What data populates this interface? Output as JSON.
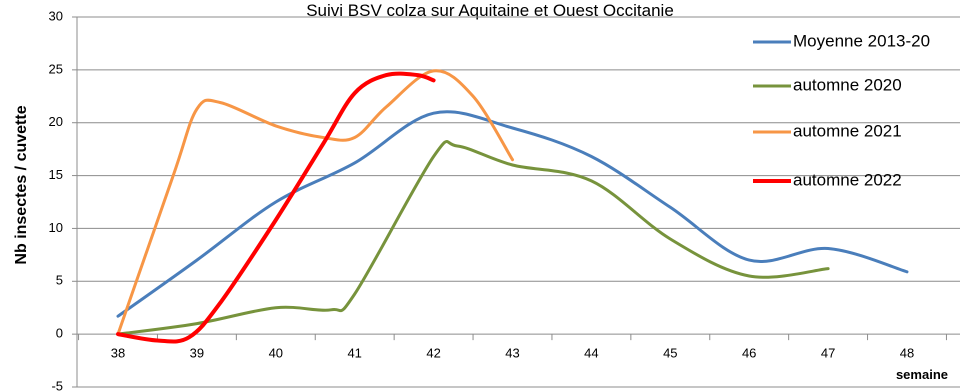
{
  "chart_data": {
    "type": "line",
    "title": "Suivi BSV colza sur Aquitaine et Ouest Occitanie",
    "xlabel": "semaine",
    "ylabel": "Nb insectes / cuvette",
    "xlim": [
      38,
      48
    ],
    "ylim": [
      -5,
      30
    ],
    "x_ticks": [
      38,
      39,
      40,
      41,
      42,
      43,
      44,
      45,
      46,
      47,
      48
    ],
    "y_ticks": [
      -5,
      0,
      5,
      10,
      15,
      20,
      25,
      30
    ],
    "grid": "horizontal",
    "legend_position": "right",
    "series": [
      {
        "name": "Moyenne 2013-20",
        "color": "#4A7EBB",
        "points": [
          [
            38,
            1.7
          ],
          [
            39,
            7.0
          ],
          [
            40,
            12.5
          ],
          [
            41,
            16.2
          ],
          [
            42,
            20.9
          ],
          [
            43,
            19.5
          ],
          [
            44,
            16.8
          ],
          [
            45,
            12.0
          ],
          [
            46,
            7.0
          ],
          [
            47,
            8.1
          ],
          [
            48,
            5.9
          ]
        ]
      },
      {
        "name": "automne 2020",
        "color": "#77933C",
        "points": [
          [
            38,
            0
          ],
          [
            39,
            1.0
          ],
          [
            40,
            2.5
          ],
          [
            40.7,
            2.3
          ],
          [
            41,
            3.8
          ],
          [
            42,
            16.8
          ],
          [
            42.3,
            17.8
          ],
          [
            43,
            16.0
          ],
          [
            44,
            14.5
          ],
          [
            45,
            9.0
          ],
          [
            46,
            5.5
          ],
          [
            47,
            6.2
          ]
        ]
      },
      {
        "name": "automne 2021",
        "color": "#F79646",
        "points": [
          [
            38,
            0
          ],
          [
            38.7,
            15.0
          ],
          [
            39,
            21.3
          ],
          [
            39.3,
            21.9
          ],
          [
            40,
            19.7
          ],
          [
            40.6,
            18.6
          ],
          [
            41,
            18.6
          ],
          [
            41.4,
            21.5
          ],
          [
            42,
            24.9
          ],
          [
            42.5,
            22.5
          ],
          [
            43,
            16.5
          ]
        ]
      },
      {
        "name": "automne 2022",
        "color": "#FF0000",
        "points": [
          [
            38,
            0
          ],
          [
            38.5,
            -0.6
          ],
          [
            38.9,
            -0.3
          ],
          [
            39.3,
            3.0
          ],
          [
            40,
            10.8
          ],
          [
            40.6,
            18.0
          ],
          [
            41,
            22.8
          ],
          [
            41.4,
            24.5
          ],
          [
            41.8,
            24.5
          ],
          [
            42,
            24.0
          ]
        ]
      }
    ]
  }
}
